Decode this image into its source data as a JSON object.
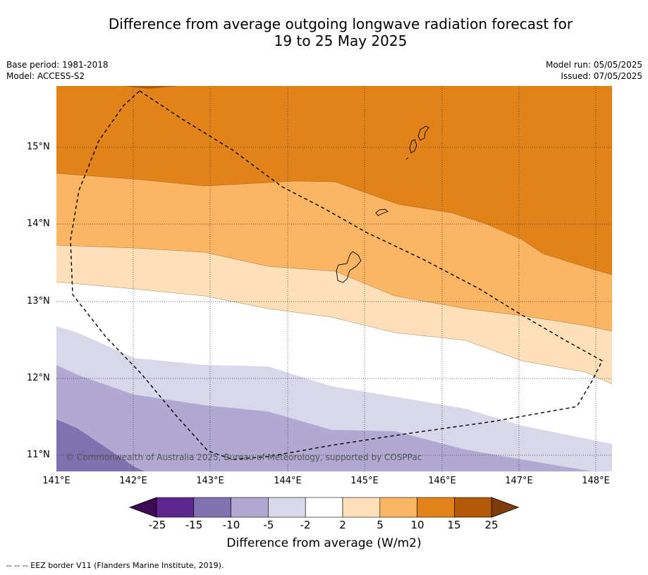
{
  "title_line1": "Difference from average outgoing longwave radiation forecast for",
  "title_line2": "19 to 25 May 2025",
  "base_period": "Base period: 1981-2018",
  "model": "Model: ACCESS-S2",
  "model_run": "Model run: 05/05/2025",
  "issued": "Issued: 07/05/2025",
  "copyright": "© Commonwealth of Australia 2025, Bureau of Meteorology, supported by COSPPac",
  "lat_labels": [
    "15°N",
    "14°N",
    "13°N",
    "12°N",
    "11°N"
  ],
  "lon_labels": [
    "141°E",
    "142°E",
    "143°E",
    "144°E",
    "145°E",
    "146°E",
    "147°E",
    "148°E"
  ],
  "colorbar": {
    "title": "Difference from average (W/m2)",
    "ticks": [
      "-25",
      "-15",
      "-10",
      "-5",
      "-2",
      "2",
      "5",
      "10",
      "15",
      "25"
    ],
    "colors": [
      "#3d0a55",
      "#5e268f",
      "#8072b0",
      "#b1a9d2",
      "#d9d7ea",
      "#ffffff",
      "#fde0b8",
      "#fbb563",
      "#e18318",
      "#b35a09",
      "#7f3b08"
    ]
  },
  "footer": "--  --  -- EEZ border V11 (Flanders Marine Institute, 2019)."
}
